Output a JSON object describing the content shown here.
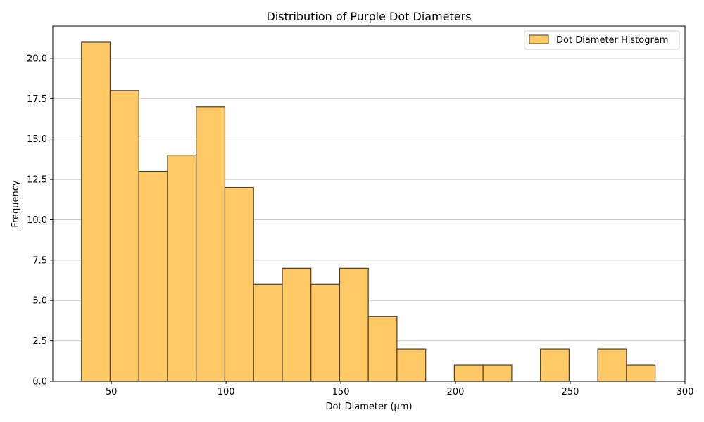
{
  "chart_data": {
    "type": "bar",
    "title": "Distribution of Purple Dot Diameters",
    "xlabel": "Dot Diameter (µm)",
    "ylabel": "Frequency",
    "bin_start": 37,
    "bin_width": 12.5,
    "series": [
      {
        "name": "Dot Diameter Histogram",
        "values": [
          21,
          18,
          13,
          14,
          17,
          12,
          6,
          7,
          6,
          7,
          4,
          2,
          0,
          1,
          1,
          0,
          2,
          0,
          2,
          1
        ]
      }
    ],
    "xlim": [
      24.5,
      300
    ],
    "ylim": [
      0,
      22
    ],
    "xticks": [
      50,
      100,
      150,
      200,
      250,
      300
    ],
    "yticks": [
      0.0,
      2.5,
      5.0,
      7.5,
      10.0,
      12.5,
      15.0,
      17.5,
      20.0
    ],
    "grid": "y",
    "legend_position": "top-right",
    "colors": {
      "bar_fill": "#ffc966",
      "bar_edge": "#4d3d28",
      "grid": "#c8c8c8"
    }
  }
}
